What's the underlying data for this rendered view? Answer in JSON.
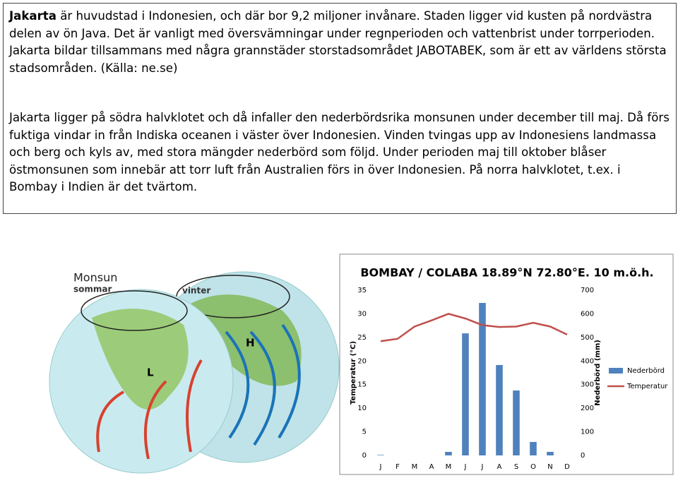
{
  "text_box": {
    "paragraph_1": {
      "lead": "Jakarta",
      "rest": "är huvudstad i Indonesien, och där bor 9,2 miljoner invånare. Staden ligger vid kusten på nordvästra delen av ön Java. Det är vanligt med översvämningar under regnperioden och vattenbrist under torrperioden. Jakarta bildar tillsammans med några grannstäder storstadsområdet JABOTABEK, som är ett av världens största stadsområden. (Källa: ne.se)"
    },
    "paragraph_2": "Jakarta ligger på södra halvklotet och då infaller den nederbördsrika monsunen under december till maj. Då förs fuktiga vindar in från Indiska oceanen i väster över Indonesien. Vinden tvingas upp av Indonesiens landmassa och berg och kyls av, med stora mängder nederbörd som följd. Under perioden maj till oktober blåser östmonsunen som innebär att torr luft från Australien förs in över Indonesien. På norra halvklotet, t.ex. i Bombay i Indien är det tvärtom."
  },
  "illustration": {
    "title": "Monsun",
    "labels": [
      "sommar",
      "vinter"
    ],
    "pressure": [
      "L",
      "H"
    ]
  },
  "chart_data": {
    "type": "bar-line",
    "title": "BOMBAY / COLABA 18.89°N 72.80°E. 10 m.ö.h.",
    "y_label": "Temperatur (°C)",
    "y2_label": "Nederbörd (mm)",
    "categories": [
      "J",
      "F",
      "M",
      "A",
      "M",
      "J",
      "J",
      "A",
      "S",
      "O",
      "N",
      "D"
    ],
    "series": [
      {
        "name": "Nederbörd",
        "color": "#4f81bd",
        "axis": "y2",
        "type": "bar",
        "values": [
          2,
          0,
          0,
          0,
          15,
          517,
          646,
          383,
          275,
          57,
          15,
          0
        ]
      },
      {
        "name": "Temperatur",
        "color": "#c0504d",
        "axis": "y",
        "type": "line",
        "values": [
          24.2,
          24.7,
          27.3,
          28.6,
          30.0,
          29.0,
          27.6,
          27.2,
          27.3,
          28.1,
          27.3,
          25.6
        ]
      }
    ],
    "ylim": [
      0,
      35
    ],
    "yticks": [
      0,
      5,
      10,
      15,
      20,
      25,
      30,
      35
    ],
    "y2lim": [
      0,
      700
    ],
    "y2ticks": [
      0,
      100,
      200,
      300,
      400,
      500,
      600,
      700
    ],
    "legend": "right"
  }
}
